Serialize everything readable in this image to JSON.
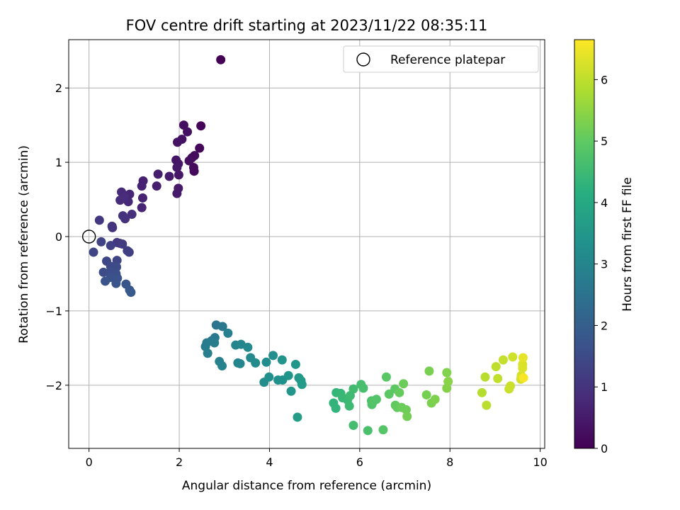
{
  "chart_data": {
    "type": "scatter",
    "title": "FOV centre drift starting at 2023/11/22 08:35:11",
    "xlabel": "Angular distance from reference (arcmin)",
    "ylabel": "Rotation from reference (arcmin)",
    "colorbar_label": "Hours from first FF file",
    "colormap": "viridis",
    "xlim": [
      -0.45,
      10.1
    ],
    "ylim": [
      -2.85,
      2.65
    ],
    "clim": [
      0,
      6.65
    ],
    "xticks": [
      0,
      2,
      4,
      6,
      8,
      10
    ],
    "yticks": [
      -2,
      -1,
      0,
      1,
      2
    ],
    "cticks": [
      0,
      1,
      2,
      3,
      4,
      5,
      6
    ],
    "grid": true,
    "legend": {
      "position": "top-right",
      "entries": [
        "Reference platepar"
      ]
    },
    "reference_point": {
      "x": 0,
      "y": 0
    },
    "points": [
      {
        "x": 2.92,
        "y": 2.38,
        "t": 0.02
      },
      {
        "x": 2.48,
        "y": 1.49,
        "t": 0.08
      },
      {
        "x": 2.45,
        "y": 1.19,
        "t": 0.12
      },
      {
        "x": 2.33,
        "y": 0.88,
        "t": 0.15
      },
      {
        "x": 2.32,
        "y": 0.93,
        "t": 0.18
      },
      {
        "x": 2.34,
        "y": 1.09,
        "t": 0.2
      },
      {
        "x": 2.28,
        "y": 1.06,
        "t": 0.22
      },
      {
        "x": 2.22,
        "y": 1.02,
        "t": 0.25
      },
      {
        "x": 2.1,
        "y": 1.5,
        "t": 0.28
      },
      {
        "x": 2.18,
        "y": 1.41,
        "t": 0.3
      },
      {
        "x": 2.06,
        "y": 1.31,
        "t": 0.32
      },
      {
        "x": 1.96,
        "y": 1.27,
        "t": 0.35
      },
      {
        "x": 1.93,
        "y": 1.03,
        "t": 0.38
      },
      {
        "x": 1.98,
        "y": 0.98,
        "t": 0.4
      },
      {
        "x": 1.99,
        "y": 0.83,
        "t": 0.42
      },
      {
        "x": 1.95,
        "y": 0.93,
        "t": 0.44
      },
      {
        "x": 1.98,
        "y": 0.65,
        "t": 0.46
      },
      {
        "x": 1.95,
        "y": 0.58,
        "t": 0.48
      },
      {
        "x": 1.78,
        "y": 0.81,
        "t": 0.5
      },
      {
        "x": 1.53,
        "y": 0.84,
        "t": 0.55
      },
      {
        "x": 1.5,
        "y": 0.68,
        "t": 0.58
      },
      {
        "x": 1.2,
        "y": 0.75,
        "t": 0.62
      },
      {
        "x": 1.17,
        "y": 0.68,
        "t": 0.65
      },
      {
        "x": 1.19,
        "y": 0.52,
        "t": 0.68
      },
      {
        "x": 1.17,
        "y": 0.39,
        "t": 0.7
      },
      {
        "x": 0.9,
        "y": 0.57,
        "t": 0.73
      },
      {
        "x": 0.87,
        "y": 0.47,
        "t": 0.76
      },
      {
        "x": 0.72,
        "y": 0.6,
        "t": 0.8
      },
      {
        "x": 0.69,
        "y": 0.49,
        "t": 0.83
      },
      {
        "x": 0.78,
        "y": 0.53,
        "t": 0.86
      },
      {
        "x": 0.95,
        "y": 0.3,
        "t": 0.9
      },
      {
        "x": 0.8,
        "y": 0.24,
        "t": 0.93
      },
      {
        "x": 0.75,
        "y": 0.28,
        "t": 0.96
      },
      {
        "x": 0.52,
        "y": 0.12,
        "t": 1.0
      },
      {
        "x": 0.51,
        "y": 0.14,
        "t": 1.03
      },
      {
        "x": 0.23,
        "y": 0.22,
        "t": 1.08
      },
      {
        "x": 0.62,
        "y": -0.08,
        "t": 1.1
      },
      {
        "x": 0.68,
        "y": -0.09,
        "t": 1.14
      },
      {
        "x": 0.74,
        "y": -0.1,
        "t": 1.18
      },
      {
        "x": 0.85,
        "y": -0.19,
        "t": 1.22
      },
      {
        "x": 0.89,
        "y": -0.21,
        "t": 1.25
      },
      {
        "x": 0.48,
        "y": -0.12,
        "t": 1.3
      },
      {
        "x": 0.27,
        "y": -0.07,
        "t": 1.33
      },
      {
        "x": 0.1,
        "y": -0.21,
        "t": 1.36
      },
      {
        "x": 0.62,
        "y": -0.32,
        "t": 1.4
      },
      {
        "x": 0.39,
        "y": -0.33,
        "t": 1.43
      },
      {
        "x": 0.48,
        "y": -0.4,
        "t": 1.46
      },
      {
        "x": 0.61,
        "y": -0.41,
        "t": 1.5
      },
      {
        "x": 0.32,
        "y": -0.48,
        "t": 1.53
      },
      {
        "x": 0.48,
        "y": -0.47,
        "t": 1.56
      },
      {
        "x": 0.6,
        "y": -0.5,
        "t": 1.6
      },
      {
        "x": 0.48,
        "y": -0.55,
        "t": 1.63
      },
      {
        "x": 0.63,
        "y": -0.56,
        "t": 1.66
      },
      {
        "x": 0.36,
        "y": -0.6,
        "t": 1.7
      },
      {
        "x": 0.6,
        "y": -0.63,
        "t": 1.73
      },
      {
        "x": 0.82,
        "y": -0.64,
        "t": 1.76
      },
      {
        "x": 0.9,
        "y": -0.72,
        "t": 1.8
      },
      {
        "x": 0.93,
        "y": -0.75,
        "t": 1.84
      },
      {
        "x": 2.82,
        "y": -1.19,
        "t": 2.6
      },
      {
        "x": 2.96,
        "y": -1.21,
        "t": 2.63
      },
      {
        "x": 2.79,
        "y": -1.36,
        "t": 2.66
      },
      {
        "x": 2.72,
        "y": -1.4,
        "t": 2.7
      },
      {
        "x": 2.61,
        "y": -1.43,
        "t": 2.73
      },
      {
        "x": 2.58,
        "y": -1.48,
        "t": 2.76
      },
      {
        "x": 2.78,
        "y": -1.43,
        "t": 2.8
      },
      {
        "x": 2.63,
        "y": -1.57,
        "t": 2.83
      },
      {
        "x": 3.08,
        "y": -1.3,
        "t": 2.86
      },
      {
        "x": 2.89,
        "y": -1.68,
        "t": 2.9
      },
      {
        "x": 2.95,
        "y": -1.74,
        "t": 2.93
      },
      {
        "x": 3.3,
        "y": -1.7,
        "t": 2.96
      },
      {
        "x": 3.25,
        "y": -1.46,
        "t": 3.0
      },
      {
        "x": 3.37,
        "y": -1.45,
        "t": 3.03
      },
      {
        "x": 3.35,
        "y": -1.71,
        "t": 3.06
      },
      {
        "x": 3.52,
        "y": -1.49,
        "t": 3.1
      },
      {
        "x": 3.58,
        "y": -1.63,
        "t": 3.13
      },
      {
        "x": 3.69,
        "y": -1.7,
        "t": 3.16
      },
      {
        "x": 3.88,
        "y": -1.96,
        "t": 3.2
      },
      {
        "x": 3.93,
        "y": -1.69,
        "t": 3.23
      },
      {
        "x": 4.08,
        "y": -1.6,
        "t": 3.26
      },
      {
        "x": 3.99,
        "y": -1.89,
        "t": 3.3
      },
      {
        "x": 4.19,
        "y": -1.93,
        "t": 3.33
      },
      {
        "x": 4.29,
        "y": -1.93,
        "t": 3.36
      },
      {
        "x": 4.28,
        "y": -1.66,
        "t": 3.4
      },
      {
        "x": 4.42,
        "y": -1.87,
        "t": 3.43
      },
      {
        "x": 4.48,
        "y": -2.08,
        "t": 3.46
      },
      {
        "x": 4.58,
        "y": -1.72,
        "t": 3.5
      },
      {
        "x": 4.65,
        "y": -1.9,
        "t": 3.53
      },
      {
        "x": 4.7,
        "y": -1.94,
        "t": 3.56
      },
      {
        "x": 4.72,
        "y": -1.99,
        "t": 3.6
      },
      {
        "x": 4.62,
        "y": -2.43,
        "t": 3.63
      },
      {
        "x": 5.42,
        "y": -2.24,
        "t": 4.3
      },
      {
        "x": 5.47,
        "y": -2.31,
        "t": 4.33
      },
      {
        "x": 5.48,
        "y": -2.1,
        "t": 4.36
      },
      {
        "x": 5.58,
        "y": -2.11,
        "t": 4.4
      },
      {
        "x": 5.62,
        "y": -2.17,
        "t": 4.43
      },
      {
        "x": 5.73,
        "y": -2.2,
        "t": 4.46
      },
      {
        "x": 5.77,
        "y": -2.28,
        "t": 4.5
      },
      {
        "x": 5.79,
        "y": -2.14,
        "t": 4.53
      },
      {
        "x": 5.86,
        "y": -2.05,
        "t": 4.56
      },
      {
        "x": 5.86,
        "y": -2.54,
        "t": 4.6
      },
      {
        "x": 6.03,
        "y": -1.99,
        "t": 4.63
      },
      {
        "x": 6.08,
        "y": -2.04,
        "t": 4.66
      },
      {
        "x": 6.18,
        "y": -2.61,
        "t": 4.7
      },
      {
        "x": 6.26,
        "y": -2.21,
        "t": 4.73
      },
      {
        "x": 6.27,
        "y": -2.26,
        "t": 4.76
      },
      {
        "x": 6.37,
        "y": -2.19,
        "t": 4.8
      },
      {
        "x": 6.3,
        "y": -2.22,
        "t": 4.83
      },
      {
        "x": 6.52,
        "y": -2.6,
        "t": 4.86
      },
      {
        "x": 6.59,
        "y": -1.89,
        "t": 4.9
      },
      {
        "x": 6.65,
        "y": -2.12,
        "t": 4.93
      },
      {
        "x": 6.78,
        "y": -2.05,
        "t": 4.96
      },
      {
        "x": 6.79,
        "y": -2.27,
        "t": 5.0
      },
      {
        "x": 6.83,
        "y": -2.3,
        "t": 5.03
      },
      {
        "x": 6.88,
        "y": -2.1,
        "t": 5.06
      },
      {
        "x": 6.93,
        "y": -2.3,
        "t": 5.1
      },
      {
        "x": 6.97,
        "y": -1.98,
        "t": 5.13
      },
      {
        "x": 7.03,
        "y": -2.33,
        "t": 5.16
      },
      {
        "x": 7.05,
        "y": -2.42,
        "t": 5.2
      },
      {
        "x": 7.48,
        "y": -2.13,
        "t": 5.23
      },
      {
        "x": 7.54,
        "y": -1.81,
        "t": 5.26
      },
      {
        "x": 7.59,
        "y": -2.24,
        "t": 5.3
      },
      {
        "x": 7.67,
        "y": -2.19,
        "t": 5.33
      },
      {
        "x": 7.93,
        "y": -1.83,
        "t": 5.36
      },
      {
        "x": 7.93,
        "y": -2.04,
        "t": 5.4
      },
      {
        "x": 7.96,
        "y": -1.95,
        "t": 5.43
      },
      {
        "x": 8.71,
        "y": -2.1,
        "t": 5.9
      },
      {
        "x": 8.78,
        "y": -1.89,
        "t": 5.93
      },
      {
        "x": 8.81,
        "y": -2.27,
        "t": 5.96
      },
      {
        "x": 9.02,
        "y": -1.75,
        "t": 6.0
      },
      {
        "x": 9.06,
        "y": -1.91,
        "t": 6.03
      },
      {
        "x": 9.18,
        "y": -1.66,
        "t": 6.06
      },
      {
        "x": 9.31,
        "y": -2.05,
        "t": 6.1
      },
      {
        "x": 9.34,
        "y": -2.01,
        "t": 6.13
      },
      {
        "x": 9.39,
        "y": -1.62,
        "t": 6.16
      },
      {
        "x": 9.57,
        "y": -1.92,
        "t": 6.2
      },
      {
        "x": 9.58,
        "y": -1.87,
        "t": 6.23
      },
      {
        "x": 9.61,
        "y": -1.72,
        "t": 6.26
      },
      {
        "x": 9.61,
        "y": -1.77,
        "t": 6.3
      },
      {
        "x": 9.62,
        "y": -1.63,
        "t": 6.4
      },
      {
        "x": 9.63,
        "y": -1.9,
        "t": 6.6
      }
    ]
  }
}
